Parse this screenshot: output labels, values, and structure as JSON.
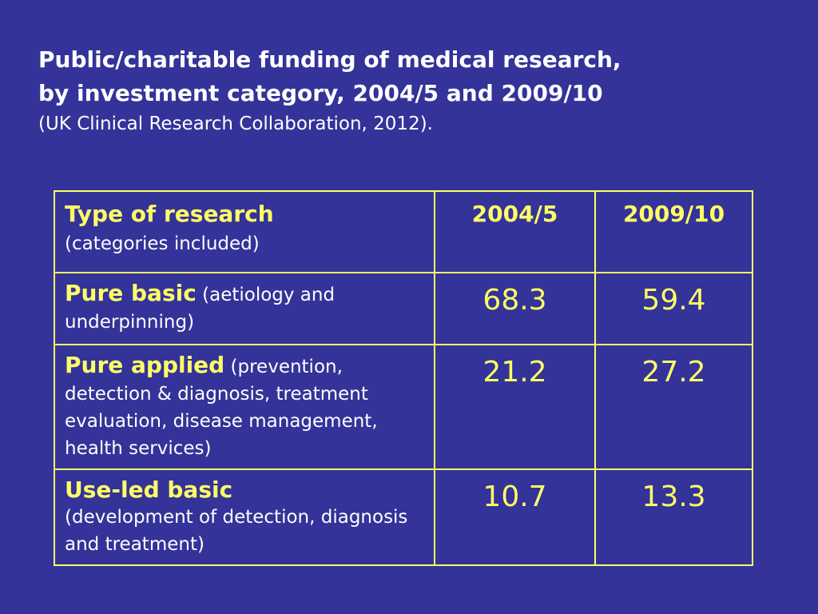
{
  "slide": {
    "background_color": "#333399",
    "accent_color": "#ffff66",
    "title_line1": "Public/charitable funding of medical research,",
    "title_line2": "by investment category, 2004/5 and 2009/10",
    "subtitle": "(UK Clinical Research Collaboration, 2012)."
  },
  "table": {
    "header": {
      "type_label": "Type of research",
      "type_note": "(categories included)",
      "col1": "2004/5",
      "col2": "2009/10"
    },
    "rows": [
      {
        "label": "Pure basic",
        "note": " (aetiology and underpinning)",
        "v2004": "68.3",
        "v2009": "59.4"
      },
      {
        "label": "Pure applied",
        "note": " (prevention, detection & diagnosis, treatment evaluation, disease management, health services)",
        "v2004": "21.2",
        "v2009": "27.2"
      },
      {
        "label": "Use-led basic",
        "note": "(development of detection, diagnosis and treatment)",
        "v2004": "10.7",
        "v2009": "13.3"
      }
    ]
  }
}
